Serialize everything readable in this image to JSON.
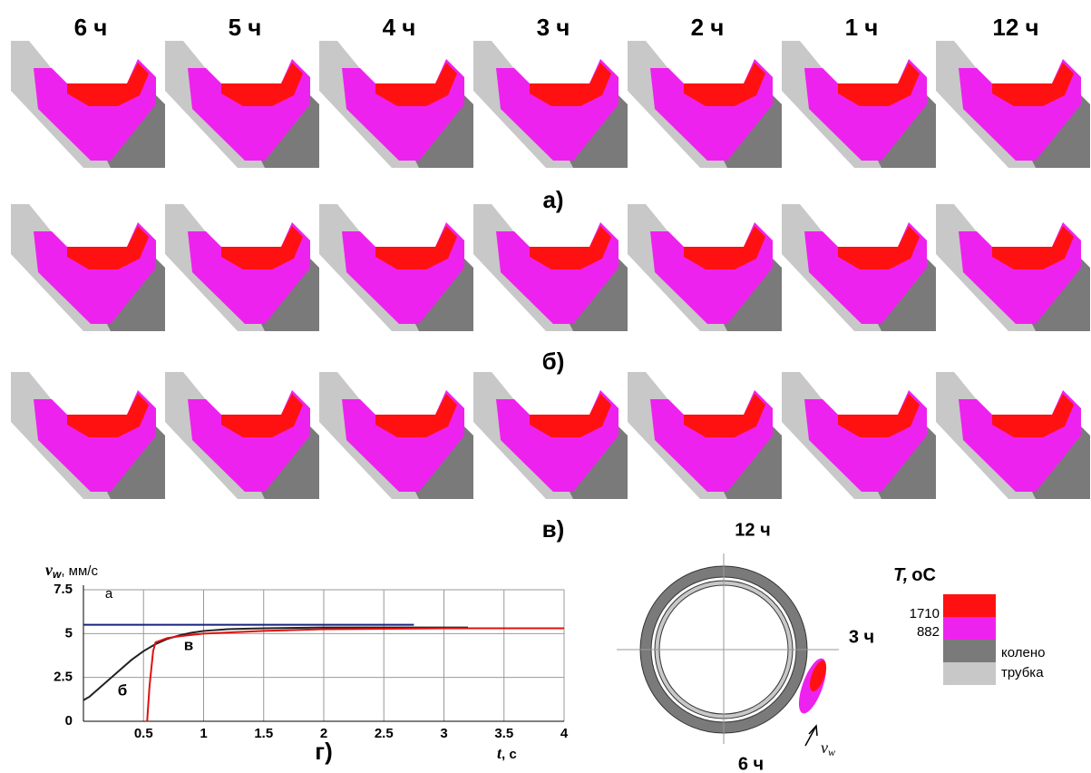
{
  "panels": {
    "column_labels": [
      "6 ч",
      "5 ч",
      "4 ч",
      "3 ч",
      "2 ч",
      "1 ч",
      "12 ч"
    ],
    "row_labels": [
      "а)",
      "б)",
      "в)"
    ]
  },
  "chart_data": {
    "type": "line",
    "caption": "г)",
    "y_label": {
      "symbol": "v",
      "subscript": "w",
      "unit": ", мм/с"
    },
    "x_label": {
      "symbol": "t",
      "unit": ", с"
    },
    "xlim": [
      0,
      4
    ],
    "xticks": [
      0.5,
      1,
      1.5,
      2,
      2.5,
      3,
      3.5,
      4
    ],
    "ylim": [
      0,
      7.5
    ],
    "yticks": [
      0,
      2.5,
      5,
      7.5
    ],
    "grid": true,
    "series": [
      {
        "name": "а",
        "color": "#1a237e",
        "x": [
          0,
          2.75
        ],
        "values": [
          5.5,
          5.5
        ]
      },
      {
        "name": "б",
        "color": "#222222",
        "x": [
          0,
          0.05,
          0.1,
          0.2,
          0.3,
          0.4,
          0.5,
          0.6,
          0.7,
          0.8,
          0.9,
          1,
          1.2,
          1.5,
          2,
          2.5,
          3,
          3.2
        ],
        "values": [
          1.2,
          1.4,
          1.7,
          2.3,
          2.9,
          3.5,
          4.0,
          4.4,
          4.7,
          4.9,
          5.05,
          5.15,
          5.25,
          5.3,
          5.35,
          5.35,
          5.35,
          5.35
        ]
      },
      {
        "name": "в",
        "color": "#e01010",
        "x": [
          0.53,
          0.55,
          0.58,
          0.6,
          0.7,
          0.8,
          1,
          1.5,
          2,
          3,
          4
        ],
        "values": [
          0,
          2,
          4,
          4.5,
          4.75,
          4.85,
          5.0,
          5.15,
          5.25,
          5.3,
          5.3
        ]
      }
    ]
  },
  "ring": {
    "top": "12 ч",
    "right": "3 ч",
    "bottom": "6 ч",
    "arrow": {
      "symbol": "v",
      "subscript": "w"
    }
  },
  "legend": {
    "title": "T,",
    "title_unit": "oC",
    "levels": [
      "1710",
      "882"
    ],
    "materials": [
      "колено",
      "трубка"
    ]
  }
}
